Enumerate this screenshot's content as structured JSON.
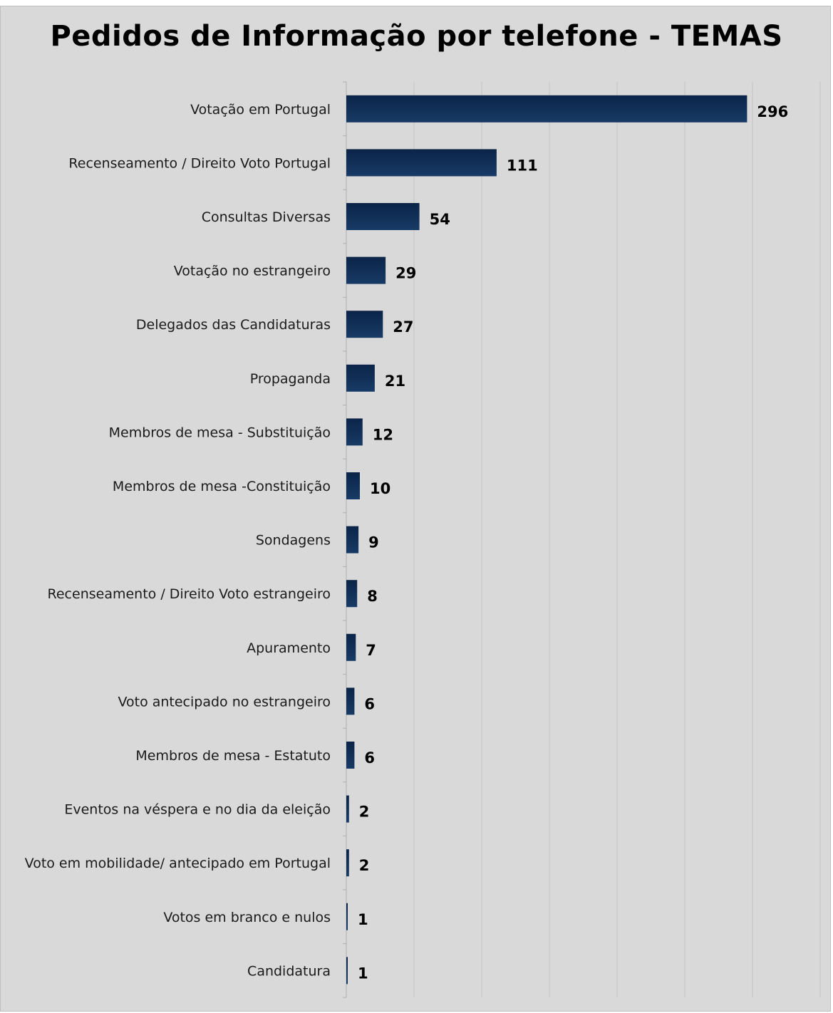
{
  "chart_data": {
    "type": "bar",
    "orientation": "horizontal",
    "title": "Pedidos de Informação por telefone - TEMAS",
    "xlabel": "",
    "ylabel": "",
    "xlim": [
      0,
      350
    ],
    "grid": true,
    "legend": "none",
    "bar_color": "#173b66",
    "bar_color_dark": "#0b2448",
    "background": "#d9d9d9",
    "categories": [
      "Votação em Portugal",
      "Recenseamento / Direito Voto Portugal",
      "Consultas Diversas",
      "Votação no estrangeiro",
      "Delegados das Candidaturas",
      "Propaganda",
      "Membros de mesa - Substituição",
      "Membros de mesa -Constituição",
      "Sondagens",
      "Recenseamento / Direito Voto estrangeiro",
      "Apuramento",
      "Voto antecipado no estrangeiro",
      "Membros de mesa - Estatuto",
      "Eventos na véspera e no dia da eleição",
      "Voto em mobilidade/ antecipado em Portugal",
      "Votos em branco e nulos",
      "Candidatura"
    ],
    "values": [
      296,
      111,
      54,
      29,
      27,
      21,
      12,
      10,
      9,
      8,
      7,
      6,
      6,
      2,
      2,
      1,
      1
    ]
  }
}
